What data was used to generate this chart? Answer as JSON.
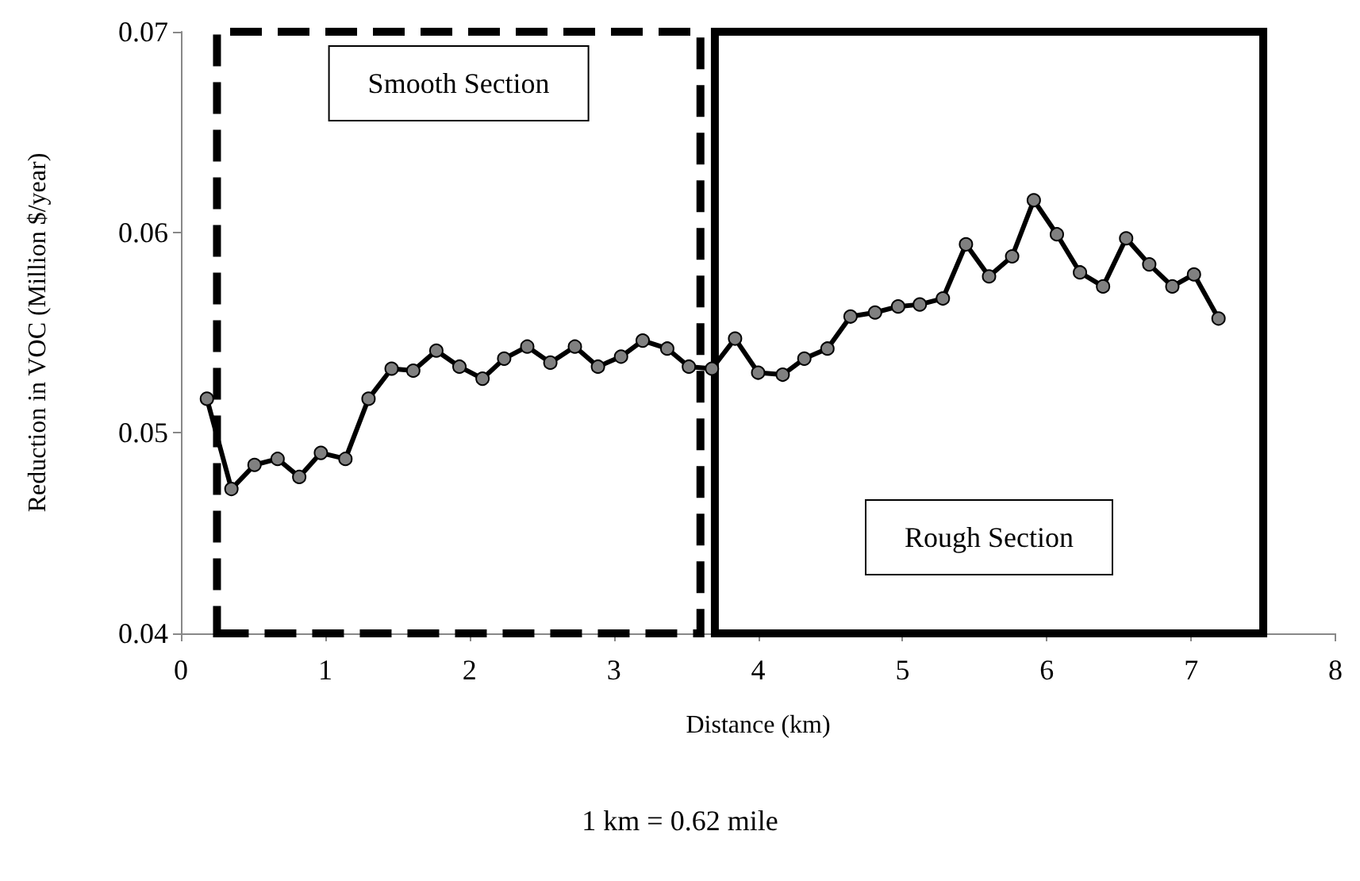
{
  "chart_data": {
    "type": "line",
    "xlabel": "Distance (km)",
    "ylabel": "Reduction in VOC (Million $/year)",
    "x": [
      0.18,
      0.35,
      0.51,
      0.67,
      0.82,
      0.97,
      1.14,
      1.3,
      1.46,
      1.61,
      1.77,
      1.93,
      2.09,
      2.24,
      2.4,
      2.56,
      2.73,
      2.89,
      3.05,
      3.2,
      3.37,
      3.52,
      3.68,
      3.84,
      4.0,
      4.17,
      4.32,
      4.48,
      4.64,
      4.81,
      4.97,
      5.12,
      5.28,
      5.44,
      5.6,
      5.76,
      5.91,
      6.07,
      6.23,
      6.39,
      6.55,
      6.71,
      6.87,
      7.02,
      7.19
    ],
    "series": [
      {
        "color": "#000000",
        "values": [
          0.0517,
          0.0472,
          0.0484,
          0.0487,
          0.0478,
          0.049,
          0.0487,
          0.0517,
          0.0532,
          0.0531,
          0.0541,
          0.0533,
          0.0527,
          0.0537,
          0.0543,
          0.0535,
          0.0543,
          0.0533,
          0.0538,
          0.0546,
          0.0542,
          0.0533,
          0.0532,
          0.0547,
          0.053,
          0.0529,
          0.0537,
          0.0542,
          0.0558,
          0.056,
          0.0563,
          0.0564,
          0.0567,
          0.0594,
          0.0578,
          0.0588,
          0.0616,
          0.0599,
          0.058,
          0.0573,
          0.0597,
          0.0584,
          0.0573,
          0.0579,
          0.0557
        ]
      }
    ],
    "xlim": [
      0,
      8
    ],
    "ylim": [
      0.04,
      0.07
    ],
    "xticks": [
      0,
      1,
      2,
      3,
      4,
      5,
      6,
      7,
      8
    ],
    "yticks": [
      0.04,
      0.05,
      0.06,
      0.07
    ],
    "bands": [
      {
        "axis": "x",
        "from": 0.25,
        "to": 3.6,
        "label": "Smooth Section",
        "color": "#000000"
      },
      {
        "axis": "x",
        "from": 3.7,
        "to": 7.5,
        "label": "Rough Section",
        "color": "#000000"
      }
    ],
    "annotations": [
      "1 km = 0.62 mile"
    ],
    "grid": false,
    "marker": "circle",
    "line_style": "solid"
  }
}
